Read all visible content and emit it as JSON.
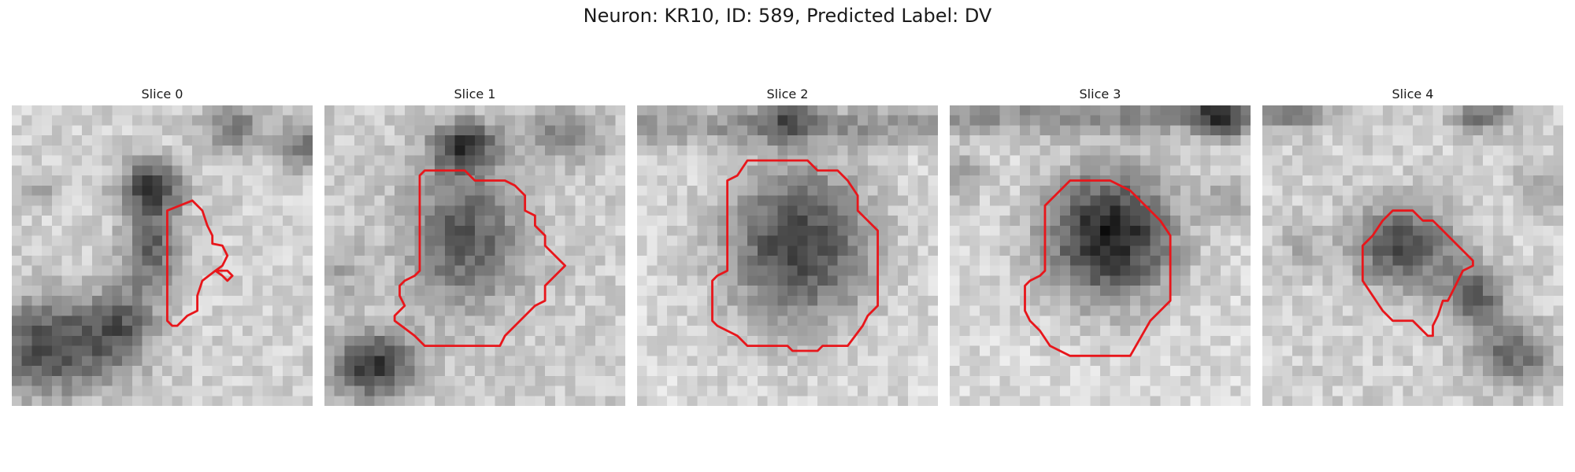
{
  "figure": {
    "title": "Neuron: KR10, ID: 589, Predicted Label: DV"
  },
  "colors": {
    "contour": "#e8161b"
  },
  "panels": [
    {
      "title": "Slice 0",
      "style": "slice0"
    },
    {
      "title": "Slice 1",
      "style": "slice1"
    },
    {
      "title": "Slice 2",
      "style": "slice2"
    },
    {
      "title": "Slice 3",
      "style": "slice3"
    },
    {
      "title": "Slice 4",
      "style": "slice4"
    }
  ]
}
